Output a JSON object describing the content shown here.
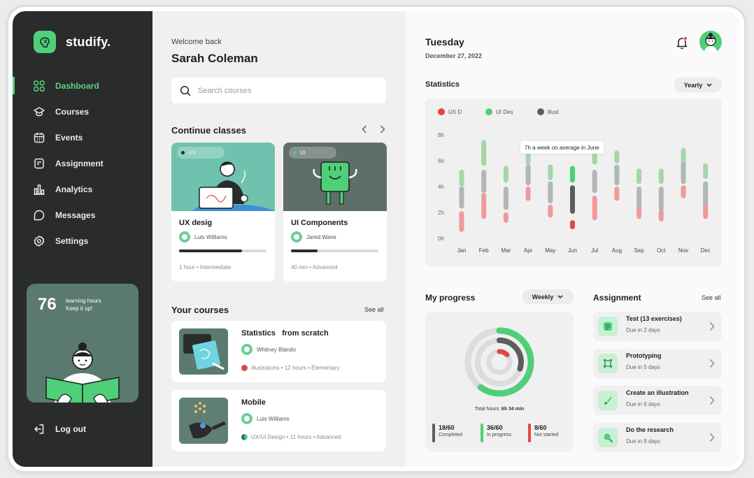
{
  "brand": {
    "name": "studify."
  },
  "sidebar": {
    "items": [
      {
        "label": "Dashboard",
        "icon": "grid-icon",
        "active": true
      },
      {
        "label": "Courses",
        "icon": "graduation-cap-icon",
        "active": false
      },
      {
        "label": "Events",
        "icon": "calendar-icon",
        "active": false
      },
      {
        "label": "Assignment",
        "icon": "clipboard-icon",
        "active": false
      },
      {
        "label": "Analytics",
        "icon": "bar-chart-icon",
        "active": false
      },
      {
        "label": "Messages",
        "icon": "chat-icon",
        "active": false
      },
      {
        "label": "Settings",
        "icon": "gear-icon",
        "active": false
      }
    ],
    "promo": {
      "hours": "76",
      "line1": "learning hours",
      "line2": "Keep it up!"
    },
    "logout_label": "Log out"
  },
  "header": {
    "welcome": "Welcome back",
    "user_name": "Sarah Coleman"
  },
  "search": {
    "placeholder": "Search courses"
  },
  "continue_classes": {
    "title": "Continue classes",
    "cards": [
      {
        "tag": "UX",
        "title": "UX desig",
        "author": "Luis Williams",
        "progress": 0.72,
        "meta": "1 hour  •  Intermediate"
      },
      {
        "tag": "UI",
        "title": "UI Components",
        "author": "Jared Wane",
        "progress": 0.3,
        "meta": "40 min  •  Advanced"
      }
    ]
  },
  "your_courses": {
    "title": "Your courses",
    "see_all": "See all",
    "items": [
      {
        "name": "Statistics   from scratch",
        "author": "Whitney Blando",
        "meta": "Illustrations  •  12 hours  •  Elementary",
        "dot_color": "#e04646"
      },
      {
        "name": "Mobile",
        "author": "Luis Williams",
        "meta": "UX/UI Design  •  11 hours  •  Advanced",
        "dot_color": "#2f6f5a"
      }
    ]
  },
  "date_panel": {
    "day": "Tuesday",
    "date": "December 27, 2022"
  },
  "statistics": {
    "title": "Statistics",
    "period": "Yearly",
    "tooltip": "7h a week on average in June"
  },
  "chart_data": {
    "type": "bar",
    "categories": [
      "Jan",
      "Feb",
      "Mar",
      "Apr",
      "May",
      "Jun",
      "Jul",
      "Aug",
      "Sep",
      "Oct",
      "Nov",
      "Dec"
    ],
    "y_ticks": [
      "0h",
      "2h",
      "4h",
      "6h",
      "8h"
    ],
    "ylim": [
      0,
      8
    ],
    "series": [
      {
        "name": "UX D",
        "color": "#ef9a9a",
        "ranges": [
          [
            0.5,
            2.1
          ],
          [
            1.5,
            3.5
          ],
          [
            1.2,
            2.0
          ],
          [
            2.9,
            4.0
          ],
          [
            1.6,
            2.6
          ],
          [
            0.7,
            1.4
          ],
          [
            1.4,
            3.3
          ],
          [
            2.9,
            4.0
          ],
          [
            1.5,
            2.5
          ],
          [
            1.3,
            2.2
          ],
          [
            3.1,
            4.1
          ],
          [
            1.5,
            3.3
          ]
        ]
      },
      {
        "name": "UI Des",
        "color": "#a5d6a7",
        "ranges": [
          [
            4.0,
            5.3
          ],
          [
            5.6,
            7.6
          ],
          [
            4.3,
            5.6
          ],
          [
            5.7,
            6.7
          ],
          [
            4.5,
            5.7
          ],
          [
            4.3,
            5.6
          ],
          [
            5.7,
            6.7
          ],
          [
            5.8,
            6.8
          ],
          [
            4.2,
            5.4
          ],
          [
            4.2,
            5.4
          ],
          [
            5.7,
            7.0
          ],
          [
            4.6,
            5.8
          ]
        ]
      },
      {
        "name": "Illust",
        "color": "#b0b7b4",
        "ranges": [
          [
            2.3,
            4.0
          ],
          [
            3.5,
            5.3
          ],
          [
            2.2,
            4.0
          ],
          [
            4.1,
            5.7
          ],
          [
            2.7,
            4.4
          ],
          [
            1.9,
            4.1
          ],
          [
            3.5,
            5.3
          ],
          [
            4.1,
            5.7
          ],
          [
            2.3,
            4.0
          ],
          [
            2.1,
            4.0
          ],
          [
            4.2,
            5.9
          ],
          [
            2.6,
            4.4
          ]
        ]
      }
    ],
    "highlight_category": "Jun",
    "highlight_colors": {
      "UX D": "#e04646",
      "UI Des": "#4fcf78",
      "Illust": "#5a5f5c"
    }
  },
  "my_progress": {
    "title": "My progress",
    "period": "Weekly",
    "total_label": "Total hours:",
    "total_value": "6h 34 min",
    "rings": [
      {
        "label": "Completed",
        "fraction": 0.3,
        "color": "#5a5f5c"
      },
      {
        "label": "In progress",
        "fraction": 0.6,
        "color": "#4fcf78"
      },
      {
        "label": "Not started",
        "fraction": 0.13,
        "color": "#e04646"
      }
    ],
    "stats": [
      {
        "value": "18/60",
        "label": "Completed",
        "color": "#5a5f5c"
      },
      {
        "value": "36/60",
        "label": "In progress",
        "color": "#4fcf78"
      },
      {
        "value": "8/60",
        "label": "Not started",
        "color": "#e04646"
      }
    ]
  },
  "assignment": {
    "title": "Assignment",
    "see_all": "See all",
    "items": [
      {
        "name": "Test (13 exercises)",
        "due": "Due in 2 days",
        "icon": "list-icon"
      },
      {
        "name": "Prototyping",
        "due": "Due in 5 days",
        "icon": "frame-icon"
      },
      {
        "name": "Create an illustration",
        "due": "Due in 6 days",
        "icon": "brush-icon"
      },
      {
        "name": "Do the research",
        "due": "Due in 9 days",
        "icon": "search-icon"
      }
    ]
  }
}
